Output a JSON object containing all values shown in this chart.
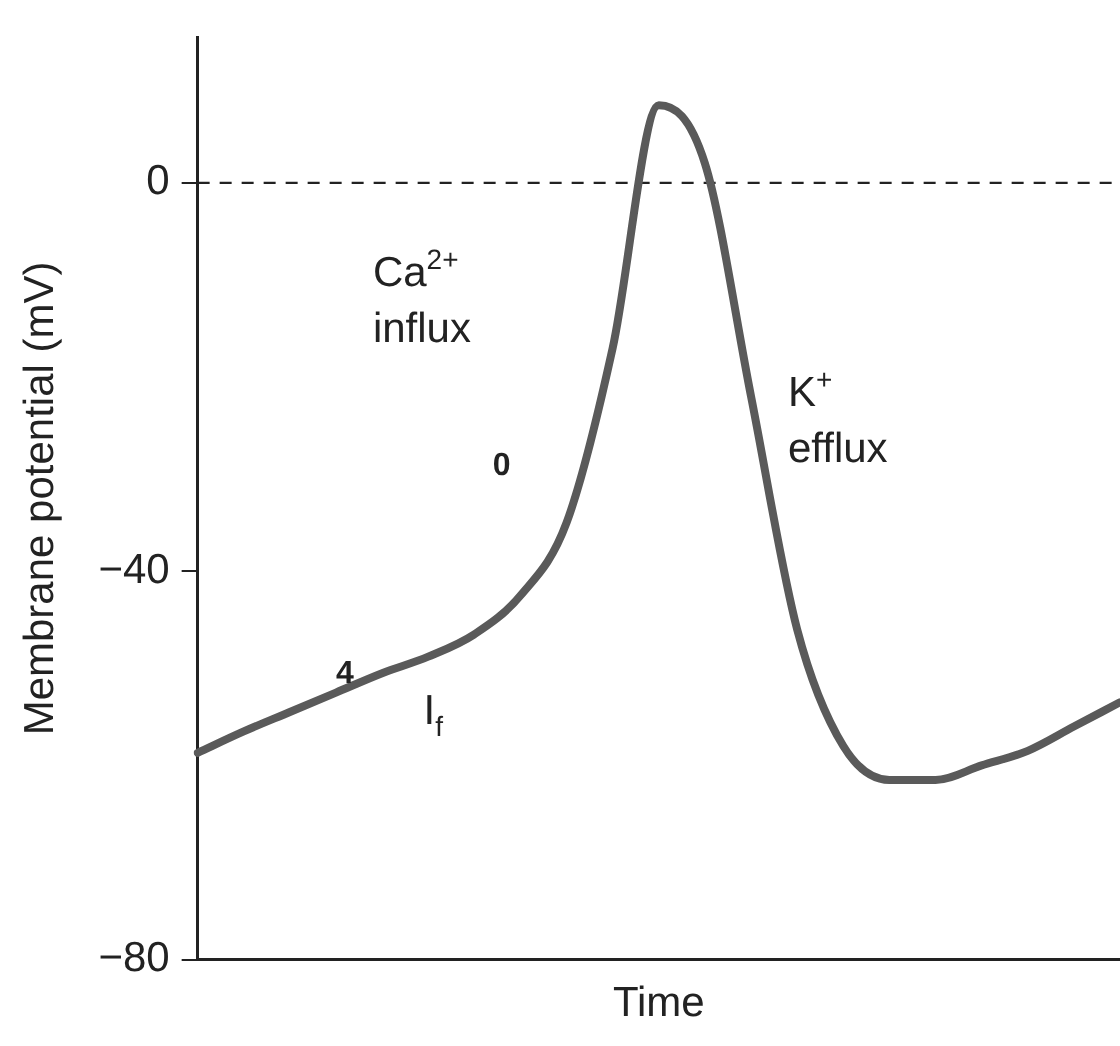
{
  "chart_data": {
    "type": "line",
    "xlabel": "Time",
    "ylabel": "Membrane potential (mV)",
    "categories": [
      null,
      null,
      null,
      null,
      null,
      null,
      null,
      null,
      null,
      null,
      null,
      null,
      null,
      null,
      null,
      null,
      null,
      null,
      null,
      null,
      null
    ],
    "series": [
      {
        "color": "#5a5a5a",
        "values": [
          -58.7,
          -56.5,
          -54.5,
          -52.5,
          -50.5,
          -48.8,
          -46.5,
          -42.5,
          -35,
          -17,
          8,
          2,
          -22,
          -46,
          -58,
          -61.5,
          -61.5,
          -60,
          -58.5,
          -56,
          -53.5
        ]
      }
    ],
    "ylim": [
      -80,
      15
    ],
    "yticks": [
      {
        "value": -80,
        "label": "−80"
      },
      {
        "value": -40,
        "label": "−40"
      },
      0
    ],
    "tick_labels": "y",
    "grid": false,
    "legend": false,
    "marker": "none",
    "line_style": "solid",
    "ref_lines": [
      {
        "axis": "y",
        "value": 0,
        "color": "#222222",
        "line_style": "dashed"
      }
    ],
    "annotations": [
      "Ca$^{2+}$\ninflux",
      "K$^{+}$\nefflux",
      "0",
      "4",
      "I$_{f}$"
    ]
  }
}
